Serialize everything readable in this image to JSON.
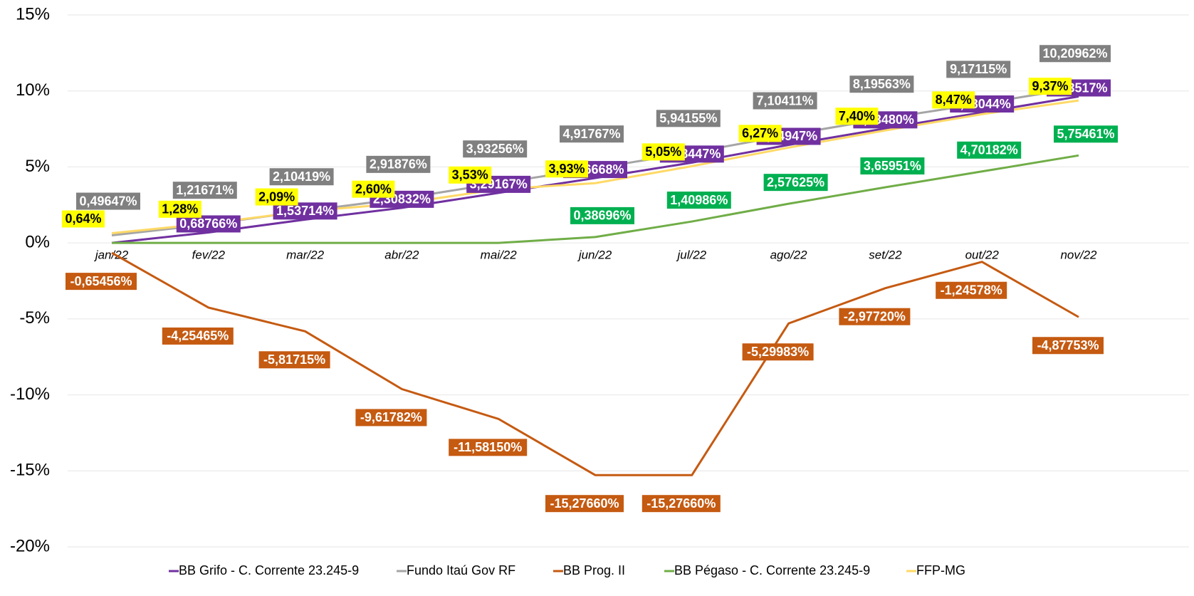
{
  "chart_data": {
    "type": "line",
    "categories": [
      "jan/22",
      "fev/22",
      "mar/22",
      "abr/22",
      "mai/22",
      "jun/22",
      "jul/22",
      "ago/22",
      "set/22",
      "out/22",
      "nov/22"
    ],
    "ylim": [
      -20,
      15
    ],
    "yticks": [
      {
        "value": -20,
        "label": "-20%"
      },
      {
        "value": -15,
        "label": "-15%"
      },
      {
        "value": -10,
        "label": "-10%"
      },
      {
        "value": -5,
        "label": "-5%"
      },
      {
        "value": 0,
        "label": "0%"
      },
      {
        "value": 5,
        "label": "5%"
      },
      {
        "value": 10,
        "label": "10%"
      },
      {
        "value": 15,
        "label": "15%"
      }
    ],
    "grid": true,
    "legend": "bottom",
    "series": [
      {
        "name": "BB Grifo - C. Corrente 23.245-9",
        "color": "#7030a0",
        "label_color": "#7030a0",
        "values": [
          0,
          0.68766,
          1.53714,
          2.30832,
          3.29167,
          4.26668,
          5.28447,
          6.44947,
          7.5348,
          8.58044,
          9.63517
        ],
        "value_labels": [
          null,
          "0,68766%",
          "1,53714%",
          "2,30832%",
          "3,29167%",
          "4,26668%",
          "5,28447%",
          "6,44947%",
          "7,53480%",
          "8,58044%",
          "9,63517%"
        ]
      },
      {
        "name": "Fundo Itaú Gov RF",
        "color": "#a5a5a5",
        "label_color": "#808080",
        "values": [
          0.49647,
          1.21671,
          2.10419,
          2.91876,
          3.93256,
          4.91767,
          5.94155,
          7.10411,
          8.19563,
          9.17115,
          10.20962
        ],
        "value_labels": [
          "0,49647%",
          "1,21671%",
          "2,10419%",
          "2,91876%",
          "3,93256%",
          "4,91767%",
          "5,94155%",
          "7,10411%",
          "8,19563%",
          "9,17115%",
          "10,20962%"
        ]
      },
      {
        "name": "BB Prog. II",
        "color": "#c55a11",
        "label_color": "#c55a11",
        "values": [
          -0.65456,
          -4.25465,
          -5.81715,
          -9.61782,
          -11.5815,
          -15.2766,
          -15.2766,
          -5.29983,
          -2.9772,
          -1.24578,
          -4.87753
        ],
        "value_labels": [
          "-0,65456%",
          "-4,25465%",
          "-5,81715%",
          "-9,61782%",
          "-11,58150%",
          "-15,27660%",
          "-15,27660%",
          "-5,29983%",
          "-2,97720%",
          "-1,24578%",
          "-4,87753%"
        ]
      },
      {
        "name": "BB Pégaso - C. Corrente 23.245-9",
        "color": "#70ad47",
        "label_color": "#00b050",
        "values": [
          0,
          0,
          0,
          0,
          0,
          0.38696,
          1.40986,
          2.57625,
          3.65951,
          4.70182,
          5.75461
        ],
        "value_labels": [
          null,
          null,
          null,
          null,
          null,
          "0,38696%",
          "1,40986%",
          "2,57625%",
          "3,65951%",
          "4,70182%",
          "5,75461%"
        ]
      },
      {
        "name": "FFP-MG",
        "color": "#ffd966",
        "label_color": "#ffff00",
        "values": [
          0.64,
          1.28,
          2.09,
          2.6,
          3.53,
          3.93,
          5.05,
          6.27,
          7.4,
          8.47,
          9.37
        ],
        "value_labels": [
          "0,64%",
          "1,28%",
          "2,09%",
          "2,60%",
          "3,53%",
          "3,93%",
          "5,05%",
          "6,27%",
          "7,40%",
          "8,47%",
          "9,37%"
        ]
      }
    ]
  }
}
